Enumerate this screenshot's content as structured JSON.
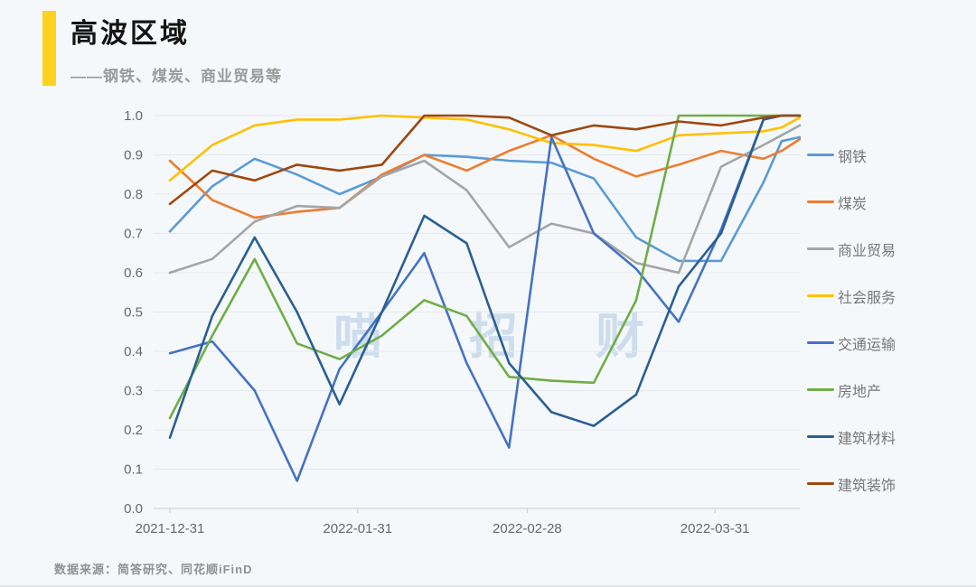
{
  "header": {
    "title": "高波区域",
    "subtitle": "——钢铁、煤炭、商业贸易等",
    "accent_color": "#FFD21E"
  },
  "source": {
    "text": "数据来源：简答研究、同花顺iFinD"
  },
  "watermark": {
    "chars": [
      "喵",
      "招",
      "财"
    ],
    "color": "#AEC8E4",
    "positions_x": [
      396,
      546,
      686
    ]
  },
  "chart_data": {
    "type": "line",
    "title": "高波区域",
    "x": [
      "2021-12-31",
      "2022-01-07",
      "2022-01-14",
      "2022-01-21",
      "2022-01-28",
      "2022-02-04",
      "2022-02-11",
      "2022-02-18",
      "2022-02-25",
      "2022-03-04",
      "2022-03-11",
      "2022-03-18",
      "2022-03-25",
      "2022-04-01",
      "2022-04-08",
      "2022-04-11",
      "2022-04-14"
    ],
    "x_tick_labels": [
      "2021-12-31",
      "2022-01-31",
      "2022-02-28",
      "2022-03-31"
    ],
    "y_tick_labels": [
      "0.0",
      "0.1",
      "0.2",
      "0.3",
      "0.4",
      "0.5",
      "0.6",
      "0.7",
      "0.8",
      "0.9",
      "1.0"
    ],
    "ylim": [
      0,
      1
    ],
    "grid": "horizontal",
    "legend_position": "right",
    "gridline_color": "#e6e9ec",
    "axisline_color": "#c9ccd0",
    "series": [
      {
        "name": "钢铁",
        "slug": "steel",
        "color": "#5B9BD5",
        "values": [
          0.705,
          0.82,
          0.89,
          0.85,
          0.8,
          0.845,
          0.9,
          0.895,
          0.885,
          0.88,
          0.84,
          0.69,
          0.63,
          0.63,
          0.83,
          0.935,
          0.945
        ]
      },
      {
        "name": "煤炭",
        "slug": "coal",
        "color": "#ED7D31",
        "values": [
          0.885,
          0.785,
          0.74,
          0.755,
          0.765,
          0.85,
          0.9,
          0.86,
          0.91,
          0.95,
          0.89,
          0.845,
          0.875,
          0.91,
          0.89,
          0.91,
          0.94
        ]
      },
      {
        "name": "商业贸易",
        "slug": "commerce-trade",
        "color": "#A5A5A5",
        "values": [
          0.6,
          0.635,
          0.73,
          0.77,
          0.765,
          0.845,
          0.885,
          0.81,
          0.665,
          0.725,
          0.7,
          0.625,
          0.6,
          0.87,
          0.925,
          0.95,
          0.975
        ]
      },
      {
        "name": "社会服务",
        "slug": "social-services",
        "color": "#FFC000",
        "values": [
          0.835,
          0.925,
          0.975,
          0.99,
          0.99,
          1.0,
          0.995,
          0.99,
          0.965,
          0.93,
          0.925,
          0.91,
          0.95,
          0.955,
          0.96,
          0.97,
          0.995
        ]
      },
      {
        "name": "交通运输",
        "slug": "transportation",
        "color": "#4472C4",
        "values": [
          0.395,
          0.425,
          0.3,
          0.07,
          0.355,
          0.5,
          0.65,
          0.37,
          0.155,
          0.945,
          0.7,
          0.61,
          0.475,
          0.71,
          0.99,
          1.0,
          1.0
        ]
      },
      {
        "name": "房地产",
        "slug": "real-estate",
        "color": "#70AD47",
        "values": [
          0.23,
          0.44,
          0.635,
          0.42,
          0.38,
          0.44,
          0.53,
          0.49,
          0.335,
          0.325,
          0.32,
          0.53,
          1.0,
          1.0,
          1.0,
          1.0,
          1.0
        ]
      },
      {
        "name": "建筑材料",
        "slug": "building-materials",
        "color": "#2B5F93",
        "values": [
          0.18,
          0.49,
          0.69,
          0.5,
          0.265,
          0.5,
          0.745,
          0.675,
          0.37,
          0.245,
          0.21,
          0.29,
          0.565,
          0.7,
          0.99,
          1.0,
          1.0
        ]
      },
      {
        "name": "建筑装饰",
        "slug": "building-decoration",
        "color": "#9E480E",
        "values": [
          0.775,
          0.86,
          0.835,
          0.875,
          0.86,
          0.875,
          1.0,
          1.0,
          0.995,
          0.95,
          0.975,
          0.965,
          0.985,
          0.975,
          0.995,
          1.0,
          1.0
        ]
      }
    ]
  }
}
